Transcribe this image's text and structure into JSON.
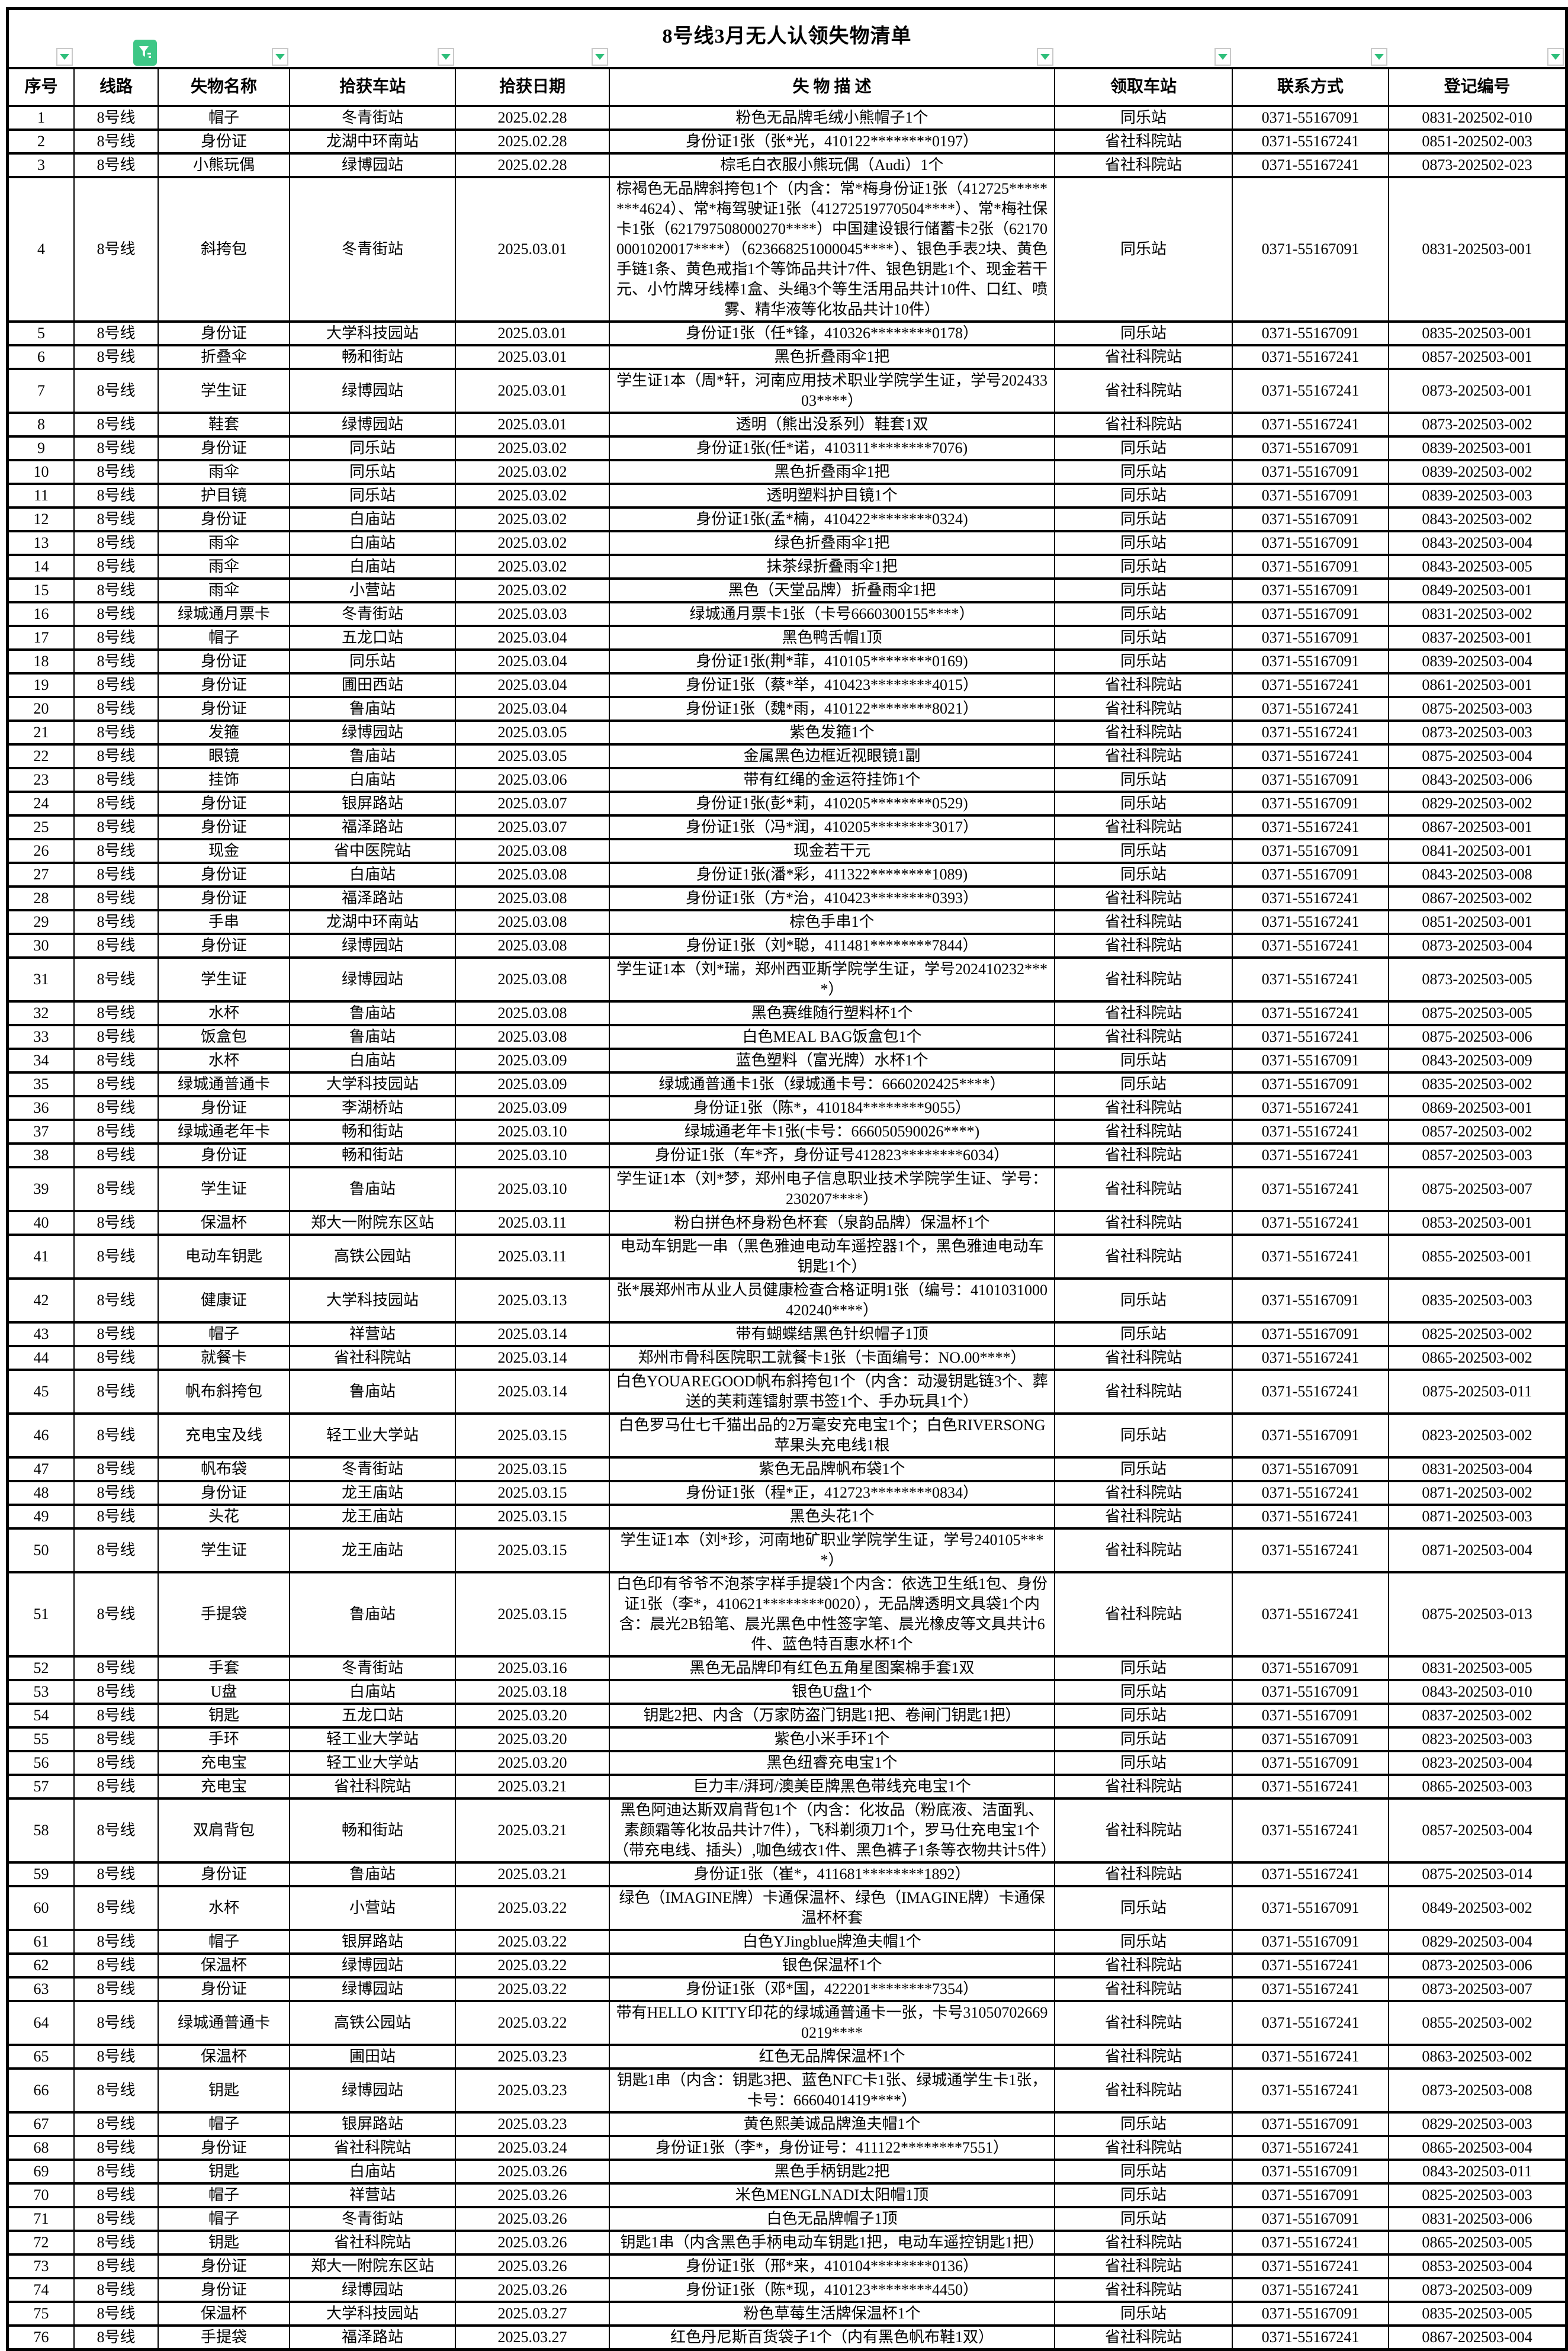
{
  "title": "8号线3月无人认领失物清单",
  "colors": {
    "filter_active_bg": "#3ec786",
    "filter_arrow_green": "#2fbf7b",
    "table_border": "#000000",
    "background": "#ffffff"
  },
  "filter_row": {
    "buttons": [
      {
        "column": "序号",
        "state": "inactive"
      },
      {
        "column": "线路",
        "state": "active"
      },
      {
        "column": "失物名称",
        "state": "inactive"
      },
      {
        "column": "拾获车站",
        "state": "inactive"
      },
      {
        "column": "拾获日期",
        "state": "inactive"
      },
      {
        "column": "失物描述",
        "state": "inactive"
      },
      {
        "column": "领取车站",
        "state": "inactive"
      },
      {
        "column": "联系方式",
        "state": "inactive"
      },
      {
        "column": "登记编号",
        "state": "inactive"
      }
    ]
  },
  "table": {
    "headers": [
      "序号",
      "线路",
      "失物名称",
      "拾获车站",
      "拾获日期",
      "失 物 描 述",
      "领取车站",
      "联系方式",
      "登记编号"
    ],
    "col_keys": [
      "seq",
      "line",
      "item-name",
      "found-station",
      "found-date",
      "description",
      "pickup-station",
      "contact",
      "registration-no"
    ],
    "rows": [
      [
        "1",
        "8号线",
        "帽子",
        "冬青街站",
        "2025.02.28",
        "粉色无品牌毛绒小熊帽子1个",
        "同乐站",
        "0371-55167091",
        "0831-202502-010"
      ],
      [
        "2",
        "8号线",
        "身份证",
        "龙湖中环南站",
        "2025.02.28",
        "身份证1张（张*光，410122********0197）",
        "省社科院站",
        "0371-55167241",
        "0851-202502-003"
      ],
      [
        "3",
        "8号线",
        "小熊玩偶",
        "绿博园站",
        "2025.02.28",
        "棕毛白衣服小熊玩偶（Audi）1个",
        "省社科院站",
        "0371-55167241",
        "0873-202502-023"
      ],
      [
        "4",
        "8号线",
        "斜挎包",
        "冬青街站",
        "2025.03.01",
        "棕褐色无品牌斜挎包1个（内含：常*梅身份证1张（412725********4624）、常*梅驾驶证1张（41272519770504****）、常*梅社保卡1张（621797508000270****）中国建设银行储蓄卡2张（621700001020017****）（623668251000045****）、银色手表2块、黄色手链1条、黄色戒指1个等饰品共计7件、银色钥匙1个、现金若干元、小竹牌牙线棒1盒、头绳3个等生活用品共计10件、口红、喷雾、精华液等化妆品共计10件）",
        "同乐站",
        "0371-55167091",
        "0831-202503-001"
      ],
      [
        "5",
        "8号线",
        "身份证",
        "大学科技园站",
        "2025.03.01",
        "身份证1张（任*锋，410326********0178）",
        "同乐站",
        "0371-55167091",
        "0835-202503-001"
      ],
      [
        "6",
        "8号线",
        "折叠伞",
        "畅和街站",
        "2025.03.01",
        "黑色折叠雨伞1把",
        "省社科院站",
        "0371-55167241",
        "0857-202503-001"
      ],
      [
        "7",
        "8号线",
        "学生证",
        "绿博园站",
        "2025.03.01",
        "学生证1本（周*轩，河南应用技术职业学院学生证，学号20243303****）",
        "省社科院站",
        "0371-55167241",
        "0873-202503-001"
      ],
      [
        "8",
        "8号线",
        "鞋套",
        "绿博园站",
        "2025.03.01",
        "透明（熊出没系列）鞋套1双",
        "省社科院站",
        "0371-55167241",
        "0873-202503-002"
      ],
      [
        "9",
        "8号线",
        "身份证",
        "同乐站",
        "2025.03.02",
        "身份证1张(任*诺，410311********7076)",
        "同乐站",
        "0371-55167091",
        "0839-202503-001"
      ],
      [
        "10",
        "8号线",
        "雨伞",
        "同乐站",
        "2025.03.02",
        "黑色折叠雨伞1把",
        "同乐站",
        "0371-55167091",
        "0839-202503-002"
      ],
      [
        "11",
        "8号线",
        "护目镜",
        "同乐站",
        "2025.03.02",
        "透明塑料护目镜1个",
        "同乐站",
        "0371-55167091",
        "0839-202503-003"
      ],
      [
        "12",
        "8号线",
        "身份证",
        "白庙站",
        "2025.03.02",
        "身份证1张(孟*楠，410422********0324)",
        "同乐站",
        "0371-55167091",
        "0843-202503-002"
      ],
      [
        "13",
        "8号线",
        "雨伞",
        "白庙站",
        "2025.03.02",
        "绿色折叠雨伞1把",
        "同乐站",
        "0371-55167091",
        "0843-202503-004"
      ],
      [
        "14",
        "8号线",
        "雨伞",
        "白庙站",
        "2025.03.02",
        "抹茶绿折叠雨伞1把",
        "同乐站",
        "0371-55167091",
        "0843-202503-005"
      ],
      [
        "15",
        "8号线",
        "雨伞",
        "小营站",
        "2025.03.02",
        "黑色（天堂品牌）折叠雨伞1把",
        "同乐站",
        "0371-55167091",
        "0849-202503-001"
      ],
      [
        "16",
        "8号线",
        "绿城通月票卡",
        "冬青街站",
        "2025.03.03",
        "绿城通月票卡1张（卡号6660300155****）",
        "同乐站",
        "0371-55167091",
        "0831-202503-002"
      ],
      [
        "17",
        "8号线",
        "帽子",
        "五龙口站",
        "2025.03.04",
        "黑色鸭舌帽1顶",
        "同乐站",
        "0371-55167091",
        "0837-202503-001"
      ],
      [
        "18",
        "8号线",
        "身份证",
        "同乐站",
        "2025.03.04",
        "身份证1张(荆*菲，410105********0169)",
        "同乐站",
        "0371-55167091",
        "0839-202503-004"
      ],
      [
        "19",
        "8号线",
        "身份证",
        "圃田西站",
        "2025.03.04",
        "身份证1张（蔡*举，410423********4015）",
        "省社科院站",
        "0371-55167241",
        "0861-202503-001"
      ],
      [
        "20",
        "8号线",
        "身份证",
        "鲁庙站",
        "2025.03.04",
        "身份证1张（魏*雨，410122********8021）",
        "省社科院站",
        "0371-55167241",
        "0875-202503-003"
      ],
      [
        "21",
        "8号线",
        "发箍",
        "绿博园站",
        "2025.03.05",
        "紫色发箍1个",
        "省社科院站",
        "0371-55167241",
        "0873-202503-003"
      ],
      [
        "22",
        "8号线",
        "眼镜",
        "鲁庙站",
        "2025.03.05",
        "金属黑色边框近视眼镜1副",
        "省社科院站",
        "0371-55167241",
        "0875-202503-004"
      ],
      [
        "23",
        "8号线",
        "挂饰",
        "白庙站",
        "2025.03.06",
        "带有红绳的金运符挂饰1个",
        "同乐站",
        "0371-55167091",
        "0843-202503-006"
      ],
      [
        "24",
        "8号线",
        "身份证",
        "银屏路站",
        "2025.03.07",
        "身份证1张(彭*莉，410205********0529)",
        "同乐站",
        "0371-55167091",
        "0829-202503-002"
      ],
      [
        "25",
        "8号线",
        "身份证",
        "福泽路站",
        "2025.03.07",
        "身份证1张（冯*润，410205********3017）",
        "省社科院站",
        "0371-55167241",
        "0867-202503-001"
      ],
      [
        "26",
        "8号线",
        "现金",
        "省中医院站",
        "2025.03.08",
        "现金若干元",
        "同乐站",
        "0371-55167091",
        "0841-202503-001"
      ],
      [
        "27",
        "8号线",
        "身份证",
        "白庙站",
        "2025.03.08",
        "身份证1张(潘*彩，411322********1089)",
        "同乐站",
        "0371-55167091",
        "0843-202503-008"
      ],
      [
        "28",
        "8号线",
        "身份证",
        "福泽路站",
        "2025.03.08",
        "身份证1张（方*治，410423********0393）",
        "省社科院站",
        "0371-55167241",
        "0867-202503-002"
      ],
      [
        "29",
        "8号线",
        "手串",
        "龙湖中环南站",
        "2025.03.08",
        "棕色手串1个",
        "省社科院站",
        "0371-55167241",
        "0851-202503-001"
      ],
      [
        "30",
        "8号线",
        "身份证",
        "绿博园站",
        "2025.03.08",
        "身份证1张（刘*聪，411481********7844）",
        "省社科院站",
        "0371-55167241",
        "0873-202503-004"
      ],
      [
        "31",
        "8号线",
        "学生证",
        "绿博园站",
        "2025.03.08",
        "学生证1本（刘*瑞，郑州西亚斯学院学生证，学号202410232****）",
        "省社科院站",
        "0371-55167241",
        "0873-202503-005"
      ],
      [
        "32",
        "8号线",
        "水杯",
        "鲁庙站",
        "2025.03.08",
        "黑色赛维随行塑料杯1个",
        "省社科院站",
        "0371-55167241",
        "0875-202503-005"
      ],
      [
        "33",
        "8号线",
        "饭盒包",
        "鲁庙站",
        "2025.03.08",
        "白色MEAL BAG饭盒包1个",
        "省社科院站",
        "0371-55167241",
        "0875-202503-006"
      ],
      [
        "34",
        "8号线",
        "水杯",
        "白庙站",
        "2025.03.09",
        "蓝色塑料（富光牌）水杯1个",
        "同乐站",
        "0371-55167091",
        "0843-202503-009"
      ],
      [
        "35",
        "8号线",
        "绿城通普通卡",
        "大学科技园站",
        "2025.03.09",
        "绿城通普通卡1张（绿城通卡号：6660202425****）",
        "同乐站",
        "0371-55167091",
        "0835-202503-002"
      ],
      [
        "36",
        "8号线",
        "身份证",
        "李湖桥站",
        "2025.03.09",
        "身份证1张（陈*，410184********9055）",
        "省社科院站",
        "0371-55167241",
        "0869-202503-001"
      ],
      [
        "37",
        "8号线",
        "绿城通老年卡",
        "畅和街站",
        "2025.03.10",
        "绿城通老年卡1张(卡号：666050590026****)",
        "省社科院站",
        "0371-55167241",
        "0857-202503-002"
      ],
      [
        "38",
        "8号线",
        "身份证",
        "畅和街站",
        "2025.03.10",
        "身份证1张（车*齐，身份证号412823********6034）",
        "省社科院站",
        "0371-55167241",
        "0857-202503-003"
      ],
      [
        "39",
        "8号线",
        "学生证",
        "鲁庙站",
        "2025.03.10",
        "学生证1本（刘*梦，郑州电子信息职业技术学院学生证、学号：230207****）",
        "省社科院站",
        "0371-55167241",
        "0875-202503-007"
      ],
      [
        "40",
        "8号线",
        "保温杯",
        "郑大一附院东区站",
        "2025.03.11",
        "粉白拼色杯身粉色杯套（泉韵品牌）保温杯1个",
        "省社科院站",
        "0371-55167241",
        "0853-202503-001"
      ],
      [
        "41",
        "8号线",
        "电动车钥匙",
        "高铁公园站",
        "2025.03.11",
        "电动车钥匙一串（黑色雅迪电动车遥控器1个，黑色雅迪电动车钥匙1个）",
        "省社科院站",
        "0371-55167241",
        "0855-202503-001"
      ],
      [
        "42",
        "8号线",
        "健康证",
        "大学科技园站",
        "2025.03.13",
        "张*展郑州市从业人员健康检查合格证明1张（编号：4101031000420240****）",
        "同乐站",
        "0371-55167091",
        "0835-202503-003"
      ],
      [
        "43",
        "8号线",
        "帽子",
        "祥营站",
        "2025.03.14",
        "带有蝴蝶结黑色针织帽子1顶",
        "同乐站",
        "0371-55167091",
        "0825-202503-002"
      ],
      [
        "44",
        "8号线",
        "就餐卡",
        "省社科院站",
        "2025.03.14",
        "郑州市骨科医院职工就餐卡1张（卡面编号：NO.00****）",
        "省社科院站",
        "0371-55167241",
        "0865-202503-002"
      ],
      [
        "45",
        "8号线",
        "帆布斜挎包",
        "鲁庙站",
        "2025.03.14",
        "白色YOUAREGOOD帆布斜挎包1个（内含：动漫钥匙链3个、葬送的芙莉莲镭射票书签1个、手办玩具1个）",
        "省社科院站",
        "0371-55167241",
        "0875-202503-011"
      ],
      [
        "46",
        "8号线",
        "充电宝及线",
        "轻工业大学站",
        "2025.03.15",
        "白色罗马仕七千猫出品的2万毫安充电宝1个；白色RIVERSONG苹果头充电线1根",
        "同乐站",
        "0371-55167091",
        "0823-202503-002"
      ],
      [
        "47",
        "8号线",
        "帆布袋",
        "冬青街站",
        "2025.03.15",
        "紫色无品牌帆布袋1个",
        "同乐站",
        "0371-55167091",
        "0831-202503-004"
      ],
      [
        "48",
        "8号线",
        "身份证",
        "龙王庙站",
        "2025.03.15",
        "身份证1张（程*正，412723********0834）",
        "省社科院站",
        "0371-55167241",
        "0871-202503-002"
      ],
      [
        "49",
        "8号线",
        "头花",
        "龙王庙站",
        "2025.03.15",
        "黑色头花1个",
        "省社科院站",
        "0371-55167241",
        "0871-202503-003"
      ],
      [
        "50",
        "8号线",
        "学生证",
        "龙王庙站",
        "2025.03.15",
        "学生证1本（刘*珍，河南地矿职业学院学生证，学号240105****）",
        "省社科院站",
        "0371-55167241",
        "0871-202503-004"
      ],
      [
        "51",
        "8号线",
        "手提袋",
        "鲁庙站",
        "2025.03.15",
        "白色印有爷爷不泡茶字样手提袋1个内含：依选卫生纸1包、身份证1张（李*，410621********0020），无品牌透明文具袋1个内含：晨光2B铅笔、晨光黑色中性签字笔、晨光橡皮等文具共计6件、蓝色特百惠水杯1个",
        "省社科院站",
        "0371-55167241",
        "0875-202503-013"
      ],
      [
        "52",
        "8号线",
        "手套",
        "冬青街站",
        "2025.03.16",
        "黑色无品牌印有红色五角星图案棉手套1双",
        "同乐站",
        "0371-55167091",
        "0831-202503-005"
      ],
      [
        "53",
        "8号线",
        "U盘",
        "白庙站",
        "2025.03.18",
        "银色U盘1个",
        "同乐站",
        "0371-55167091",
        "0843-202503-010"
      ],
      [
        "54",
        "8号线",
        "钥匙",
        "五龙口站",
        "2025.03.20",
        "钥匙2把、内含（万家防盗门钥匙1把、卷闸门钥匙1把）",
        "同乐站",
        "0371-55167091",
        "0837-202503-002"
      ],
      [
        "55",
        "8号线",
        "手环",
        "轻工业大学站",
        "2025.03.20",
        "紫色小米手环1个",
        "同乐站",
        "0371-55167091",
        "0823-202503-003"
      ],
      [
        "56",
        "8号线",
        "充电宝",
        "轻工业大学站",
        "2025.03.20",
        "黑色纽睿充电宝1个",
        "同乐站",
        "0371-55167091",
        "0823-202503-004"
      ],
      [
        "57",
        "8号线",
        "充电宝",
        "省社科院站",
        "2025.03.21",
        "巨力丰/湃珂/澳美臣牌黑色带线充电宝1个",
        "省社科院站",
        "0371-55167241",
        "0865-202503-003"
      ],
      [
        "58",
        "8号线",
        "双肩背包",
        "畅和街站",
        "2025.03.21",
        "黑色阿迪达斯双肩背包1个（内含：化妆品（粉底液、洁面乳、素颜霜等化妆品共计7件），飞科剃须刀1个，罗马仕充电宝1个（带充电线、插头）,咖色绒衣1件、黑色裤子1条等衣物共计5件）",
        "省社科院站",
        "0371-55167241",
        "0857-202503-004"
      ],
      [
        "59",
        "8号线",
        "身份证",
        "鲁庙站",
        "2025.03.21",
        "身份证1张（崔*，411681********1892）",
        "省社科院站",
        "0371-55167241",
        "0875-202503-014"
      ],
      [
        "60",
        "8号线",
        "水杯",
        "小营站",
        "2025.03.22",
        "绿色（IMAGINE牌）卡通保温杯、绿色（IMAGINE牌）卡通保温杯杯套",
        "同乐站",
        "0371-55167091",
        "0849-202503-002"
      ],
      [
        "61",
        "8号线",
        "帽子",
        "银屏路站",
        "2025.03.22",
        "白色YJingblue牌渔夫帽1个",
        "同乐站",
        "0371-55167091",
        "0829-202503-004"
      ],
      [
        "62",
        "8号线",
        "保温杯",
        "绿博园站",
        "2025.03.22",
        "银色保温杯1个",
        "省社科院站",
        "0371-55167241",
        "0873-202503-006"
      ],
      [
        "63",
        "8号线",
        "身份证",
        "绿博园站",
        "2025.03.22",
        "身份证1张（邓*国，422201********7354）",
        "省社科院站",
        "0371-55167241",
        "0873-202503-007"
      ],
      [
        "64",
        "8号线",
        "绿城通普通卡",
        "高铁公园站",
        "2025.03.22",
        "带有HELLO KITTY印花的绿城通普通卡一张，卡号310507026690219****",
        "省社科院站",
        "0371-55167241",
        "0855-202503-002"
      ],
      [
        "65",
        "8号线",
        "保温杯",
        "圃田站",
        "2025.03.23",
        "红色无品牌保温杯1个",
        "省社科院站",
        "0371-55167241",
        "0863-202503-002"
      ],
      [
        "66",
        "8号线",
        "钥匙",
        "绿博园站",
        "2025.03.23",
        "钥匙1串（内含：钥匙3把、蓝色NFC卡1张、绿城通学生卡1张，卡号：6660401419****）",
        "省社科院站",
        "0371-55167241",
        "0873-202503-008"
      ],
      [
        "67",
        "8号线",
        "帽子",
        "银屏路站",
        "2025.03.23",
        "黄色熙美诚品牌渔夫帽1个",
        "同乐站",
        "0371-55167091",
        "0829-202503-003"
      ],
      [
        "68",
        "8号线",
        "身份证",
        "省社科院站",
        "2025.03.24",
        "身份证1张（李*，身份证号：411122********7551）",
        "省社科院站",
        "0371-55167241",
        "0865-202503-004"
      ],
      [
        "69",
        "8号线",
        "钥匙",
        "白庙站",
        "2025.03.26",
        "黑色手柄钥匙2把",
        "同乐站",
        "0371-55167091",
        "0843-202503-011"
      ],
      [
        "70",
        "8号线",
        "帽子",
        "祥营站",
        "2025.03.26",
        "米色MENGLNADI太阳帽1顶",
        "同乐站",
        "0371-55167091",
        "0825-202503-003"
      ],
      [
        "71",
        "8号线",
        "帽子",
        "冬青街站",
        "2025.03.26",
        "白色无品牌帽子1顶",
        "同乐站",
        "0371-55167091",
        "0831-202503-006"
      ],
      [
        "72",
        "8号线",
        "钥匙",
        "省社科院站",
        "2025.03.26",
        "钥匙1串（内含黑色手柄电动车钥匙1把，电动车遥控钥匙1把）",
        "省社科院站",
        "0371-55167241",
        "0865-202503-005"
      ],
      [
        "73",
        "8号线",
        "身份证",
        "郑大一附院东区站",
        "2025.03.26",
        "身份证1张（邢*来，410104********0136）",
        "省社科院站",
        "0371-55167241",
        "0853-202503-004"
      ],
      [
        "74",
        "8号线",
        "身份证",
        "绿博园站",
        "2025.03.26",
        "身份证1张（陈*现，410123********4450）",
        "省社科院站",
        "0371-55167241",
        "0873-202503-009"
      ],
      [
        "75",
        "8号线",
        "保温杯",
        "大学科技园站",
        "2025.03.27",
        "粉色草莓生活牌保温杯1个",
        "同乐站",
        "0371-55167091",
        "0835-202503-005"
      ],
      [
        "76",
        "8号线",
        "手提袋",
        "福泽路站",
        "2025.03.27",
        "红色丹尼斯百货袋子1个（内有黑色帆布鞋1双）",
        "省社科院站",
        "0371-55167241",
        "0867-202503-004"
      ]
    ]
  }
}
